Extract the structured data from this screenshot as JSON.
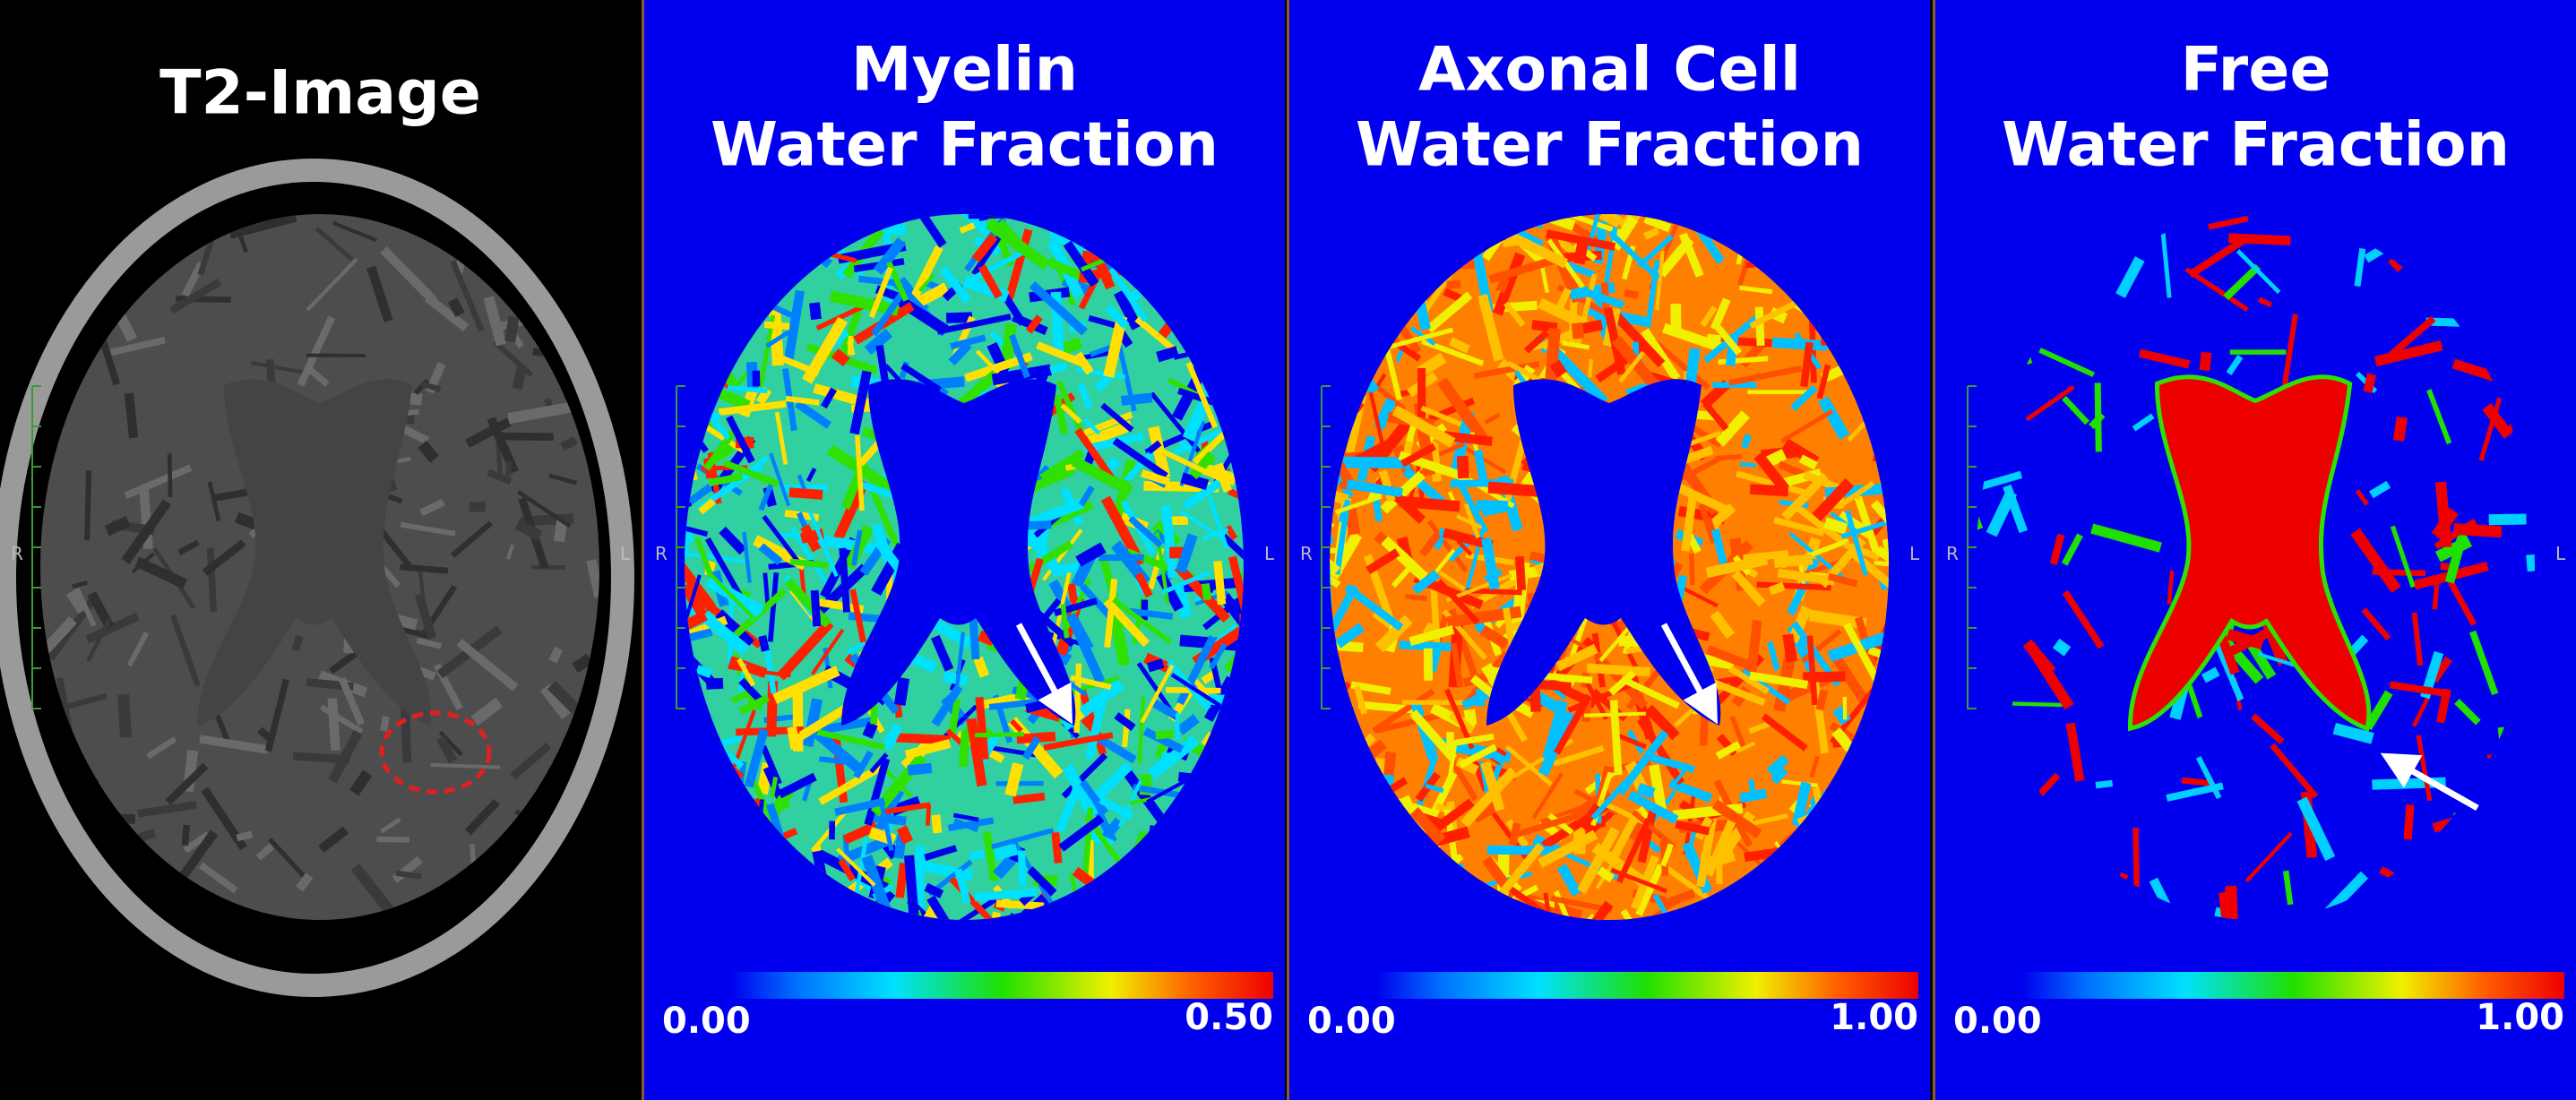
{
  "panels": [
    {
      "title": [
        "T2-Image"
      ],
      "side_labels": [
        "R",
        "L"
      ]
    },
    {
      "title": [
        "Myelin",
        "Water Fraction"
      ],
      "colorbar": [
        "0.00",
        "0.50"
      ],
      "side_labels": [
        "R",
        "L"
      ]
    },
    {
      "title": [
        "Axonal Cell",
        "Water Fraction"
      ],
      "colorbar": [
        "0.00",
        "1.00"
      ],
      "side_labels": [
        "R",
        "L"
      ]
    },
    {
      "title": [
        "Free",
        "Water Fraction"
      ],
      "colorbar": [
        "0.00",
        "1.00"
      ],
      "side_labels": [
        "R",
        "L"
      ]
    }
  ]
}
